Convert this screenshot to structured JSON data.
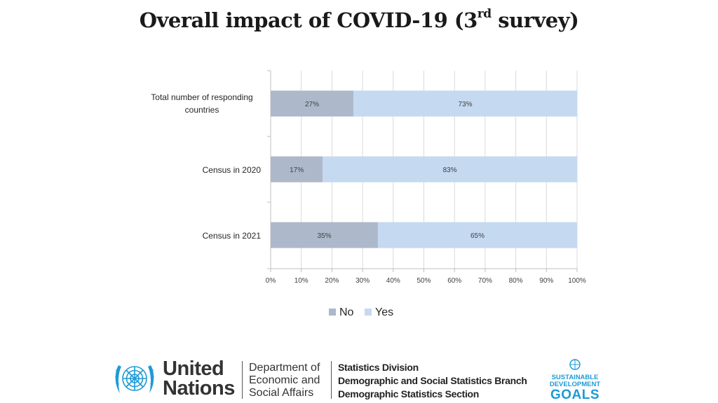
{
  "title": {
    "main": "Overall impact of COVID-19 (3",
    "superscript": "rd",
    "suffix": " survey)"
  },
  "chart_data": {
    "type": "bar",
    "orientation": "horizontal",
    "stacked": true,
    "categories": [
      "Total number of responding countries",
      "Census in 2020",
      "Census in 2021"
    ],
    "series": [
      {
        "name": "No",
        "values": [
          27,
          17,
          35
        ],
        "labels": [
          "27%",
          "17%",
          "35%"
        ],
        "color": "#adb9ca"
      },
      {
        "name": "Yes",
        "values": [
          73,
          83,
          65
        ],
        "labels": [
          "73%",
          "83%",
          "65%"
        ],
        "color": "#c5d9f1"
      }
    ],
    "xticks": [
      "0%",
      "10%",
      "20%",
      "30%",
      "40%",
      "50%",
      "60%",
      "70%",
      "80%",
      "90%",
      "100%"
    ],
    "xlim": [
      0,
      100
    ],
    "grid": true,
    "legend_position": "bottom",
    "xlabel": "",
    "ylabel": ""
  },
  "footer": {
    "un_line1": "United",
    "un_line2": "Nations",
    "desa_line1": "Department of",
    "desa_line2": "Economic and",
    "desa_line3": "Social Affairs",
    "sd_line1": "Statistics Division",
    "sd_line2": "Demographic and Social Statistics Branch",
    "sd_line3": "Demographic Statistics Section",
    "sdg_line1": "SUSTAINABLE",
    "sdg_line2": "DEVELOPMENT",
    "sdg_line3": "GOALS"
  }
}
